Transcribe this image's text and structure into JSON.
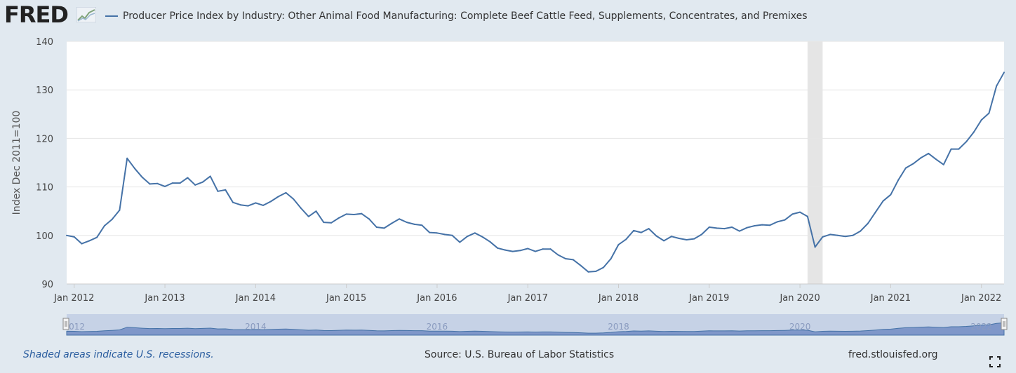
{
  "header": {
    "logo_text": "FRED",
    "legend_label": "Producer Price Index by Industry: Other Animal Food Manufacturing: Complete Beef Cattle Feed, Supplements, Concentrates, and Premixes"
  },
  "footer": {
    "recession_note": "Shaded areas indicate U.S. recessions.",
    "source": "Source: U.S. Bureau of Labor Statistics",
    "site": "fred.stlouisfed.org"
  },
  "colors": {
    "series": "#4572a7",
    "plot_background": "#ffffff",
    "page_background": "#e1e9f0",
    "recession": "#e5e5e5",
    "navigator_fill": "#7f97c9"
  },
  "icons": [
    "fred-logo-chart-icon",
    "fullscreen-icon",
    "navigator-handle-icon"
  ],
  "chart_data": {
    "type": "line",
    "title": "",
    "xlabel": "",
    "ylabel": "Index Dec 2011=100",
    "ylim": [
      90,
      140
    ],
    "yticks": [
      90,
      100,
      110,
      120,
      130,
      140
    ],
    "xlim": [
      "2011-12",
      "2022-04"
    ],
    "xtick_labels": [
      "Jan 2012",
      "Jan 2013",
      "Jan 2014",
      "Jan 2015",
      "Jan 2016",
      "Jan 2017",
      "Jan 2018",
      "Jan 2019",
      "Jan 2020",
      "Jan 2021",
      "Jan 2022"
    ],
    "navigator_labels": [
      "2012",
      "2014",
      "2016",
      "2018",
      "2020",
      "2022"
    ],
    "grid": true,
    "legend": "top-left",
    "recessions": [
      {
        "start": "2020-02",
        "end": "2020-04"
      }
    ],
    "series": [
      {
        "name": "Producer Price Index by Industry: Other Animal Food Manufacturing: Complete Beef Cattle Feed, Supplements, Concentrates, and Premixes",
        "start": "2011-12",
        "frequency": "monthly",
        "values": [
          100.0,
          99.7,
          98.3,
          98.9,
          99.6,
          102.0,
          103.3,
          105.2,
          115.9,
          113.8,
          112.0,
          110.6,
          110.7,
          110.1,
          110.8,
          110.8,
          111.9,
          110.4,
          111.0,
          112.2,
          109.1,
          109.4,
          106.8,
          106.3,
          106.1,
          106.7,
          106.2,
          107.0,
          108.0,
          108.8,
          107.5,
          105.6,
          103.9,
          105.0,
          102.7,
          102.6,
          103.6,
          104.4,
          104.3,
          104.5,
          103.4,
          101.7,
          101.5,
          102.5,
          103.4,
          102.7,
          102.3,
          102.1,
          100.6,
          100.5,
          100.2,
          100.0,
          98.6,
          99.8,
          100.5,
          99.7,
          98.7,
          97.4,
          97.0,
          96.7,
          96.9,
          97.3,
          96.7,
          97.2,
          97.2,
          96.0,
          95.2,
          95.0,
          93.8,
          92.5,
          92.6,
          93.4,
          95.2,
          98.1,
          99.2,
          101.0,
          100.6,
          101.4,
          99.9,
          98.9,
          99.8,
          99.4,
          99.1,
          99.3,
          100.2,
          101.7,
          101.5,
          101.4,
          101.7,
          100.9,
          101.6,
          102.0,
          102.2,
          102.1,
          102.8,
          103.2,
          104.4,
          104.8,
          103.9,
          97.6,
          99.7,
          100.2,
          100.0,
          99.8,
          100.0,
          100.9,
          102.5,
          104.8,
          107.1,
          108.4,
          111.4,
          113.9,
          114.8,
          116.0,
          116.9,
          115.7,
          114.6,
          117.8,
          117.8,
          119.3,
          121.3,
          123.8,
          125.2,
          130.8,
          133.6
        ]
      }
    ]
  }
}
